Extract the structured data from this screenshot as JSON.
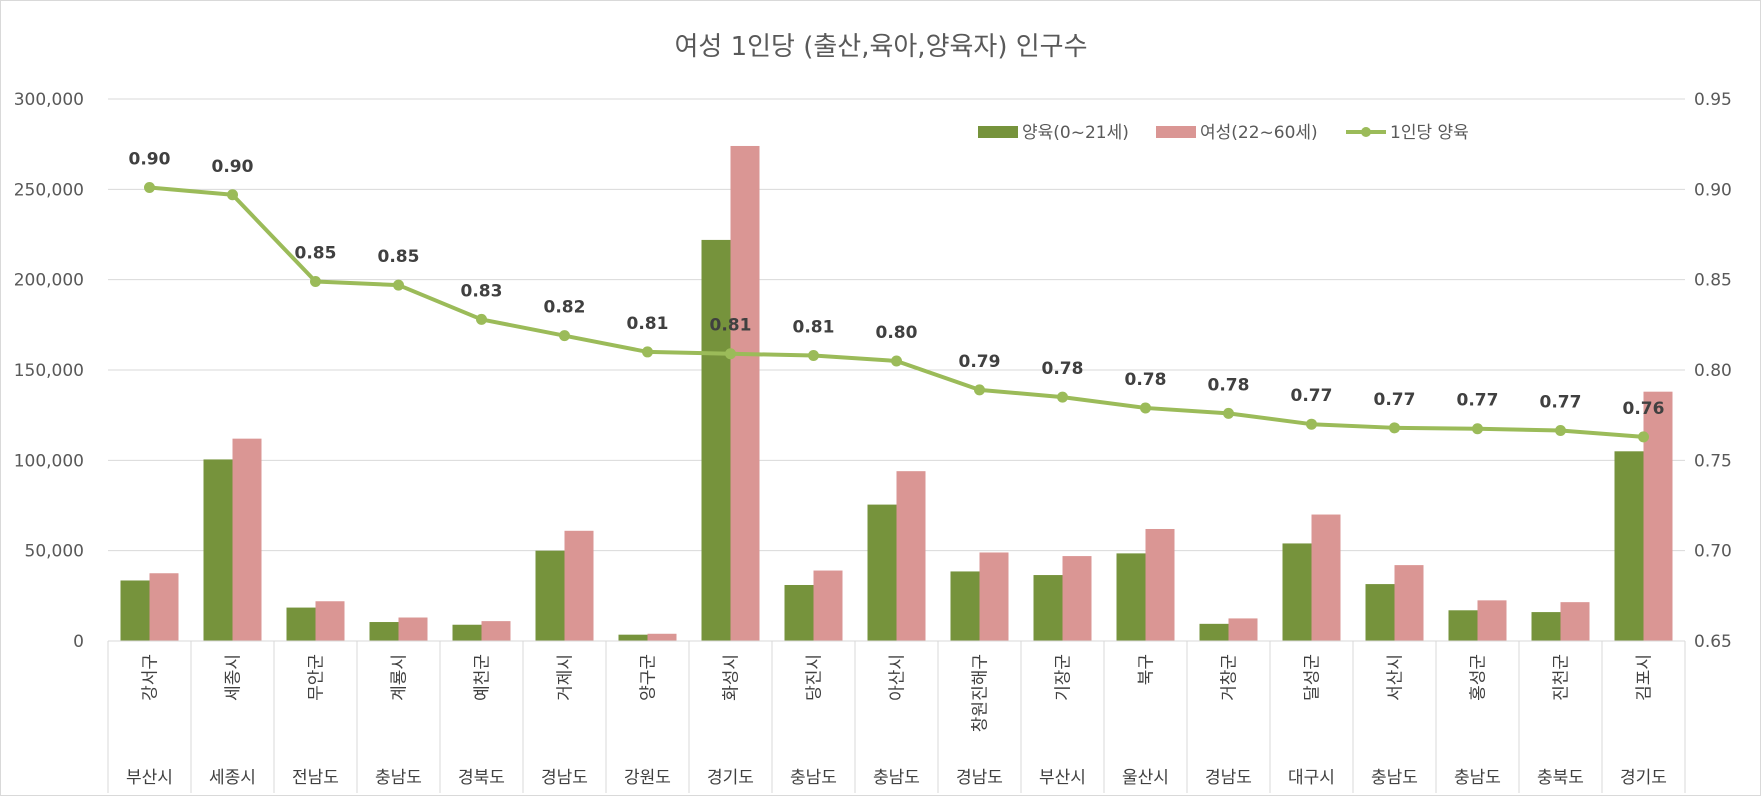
{
  "chart_data": {
    "type": "bar",
    "title": "여성 1인당 (출산,육아,양육자) 인구수",
    "categories": [
      "강서구",
      "세종시",
      "무안군",
      "계룡시",
      "예천군",
      "거제시",
      "양구군",
      "화성시",
      "당진시",
      "아산시",
      "창원진해구",
      "기장군",
      "북구",
      "거창군",
      "달성군",
      "서산시",
      "홍성군",
      "진천군",
      "김포시"
    ],
    "regions": [
      "부산시",
      "세종시",
      "전남도",
      "충남도",
      "경북도",
      "경남도",
      "강원도",
      "경기도",
      "충남도",
      "충남도",
      "경남도",
      "부산시",
      "울산시",
      "경남도",
      "대구시",
      "충남도",
      "충남도",
      "충북도",
      "경기도"
    ],
    "series": [
      {
        "name": "양육(0~21세)",
        "axis": "left",
        "type": "bar",
        "color": "#76933c",
        "values": [
          33500,
          100500,
          18500,
          10500,
          9000,
          50000,
          3500,
          222000,
          31000,
          75500,
          38500,
          36500,
          48500,
          9500,
          54000,
          31500,
          17000,
          16000,
          105000
        ]
      },
      {
        "name": "여성(22~60세)",
        "axis": "left",
        "type": "bar",
        "color": "#da9694",
        "values": [
          37500,
          112000,
          22000,
          13000,
          11000,
          61000,
          4000,
          274000,
          39000,
          94000,
          49000,
          47000,
          62000,
          12500,
          70000,
          42000,
          22500,
          21500,
          138000
        ]
      },
      {
        "name": "1인당 양육",
        "axis": "right",
        "type": "line",
        "color": "#9bbb59",
        "values": [
          0.901,
          0.897,
          0.849,
          0.847,
          0.828,
          0.819,
          0.81,
          0.809,
          0.808,
          0.805,
          0.789,
          0.785,
          0.779,
          0.776,
          0.77,
          0.768,
          0.7675,
          0.7665,
          0.763
        ],
        "labels": [
          "0.90",
          "0.90",
          "0.85",
          "0.85",
          "0.83",
          "0.82",
          "0.81",
          "0.81",
          "0.81",
          "0.80",
          "0.79",
          "0.78",
          "0.78",
          "0.78",
          "0.77",
          "0.77",
          "0.77",
          "0.77",
          "0.76"
        ]
      }
    ],
    "y_left": {
      "min": 0,
      "max": 300000,
      "step": 50000,
      "tick_labels": [
        "0",
        "50,000",
        "100,000",
        "150,000",
        "200,000",
        "250,000",
        "300,000"
      ]
    },
    "y_right": {
      "min": 0.65,
      "max": 0.95,
      "step": 0.05,
      "tick_labels": [
        "0.65",
        "0.70",
        "0.75",
        "0.80",
        "0.85",
        "0.90",
        "0.95"
      ]
    },
    "grid": true,
    "legend_position": "top-right"
  }
}
